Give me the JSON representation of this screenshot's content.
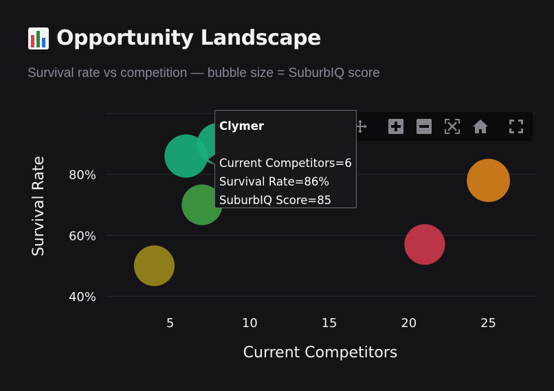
{
  "header": {
    "title_icon": "bar-chart-icon",
    "title": "Opportunity Landscape",
    "subtitle": "Survival rate vs competition — bubble size = SuburbIQ score"
  },
  "tooltip": {
    "name": "Clymer",
    "line1": "Current Competitors=6",
    "line2": "Survival Rate=86%",
    "line3": "SuburbIQ Score=85"
  },
  "modebar": {
    "icons": [
      "pan-icon",
      "zoom-in-icon",
      "zoom-out-icon",
      "autoscale-icon",
      "reset-axes-icon",
      "fullscreen-icon"
    ]
  },
  "chart_data": {
    "type": "scatter",
    "title": "Opportunity Landscape",
    "subtitle": "Survival rate vs competition — bubble size = SuburbIQ score",
    "xlabel": "Current Competitors",
    "ylabel": "Survival Rate",
    "xlim": [
      1,
      28
    ],
    "ylim": [
      38,
      100
    ],
    "xticks": [
      5,
      10,
      15,
      20,
      25
    ],
    "xtick_labels": [
      "5",
      "10",
      "15",
      "20",
      "25"
    ],
    "yticks": [
      40,
      60,
      80
    ],
    "ytick_labels": [
      "40%",
      "60%",
      "80%"
    ],
    "grid": true,
    "legend": "none",
    "size_variable": "SuburbIQ Score",
    "points": [
      {
        "label": "",
        "x": 4,
        "y": 50,
        "size": 80,
        "color": "#9c8a1c"
      },
      {
        "label": "",
        "x": 7,
        "y": 70,
        "size": 80,
        "color": "#41a044"
      },
      {
        "label": "Clymer",
        "x": 6,
        "y": 86,
        "size": 85,
        "color": "#1ab07e"
      },
      {
        "label": "",
        "x": 8,
        "y": 90,
        "size": 82,
        "color": "#1ab07e"
      },
      {
        "label": "",
        "x": 21,
        "y": 57,
        "size": 80,
        "color": "#cd3a4a"
      },
      {
        "label": "",
        "x": 25,
        "y": 78,
        "size": 85,
        "color": "#d9831a"
      }
    ]
  }
}
